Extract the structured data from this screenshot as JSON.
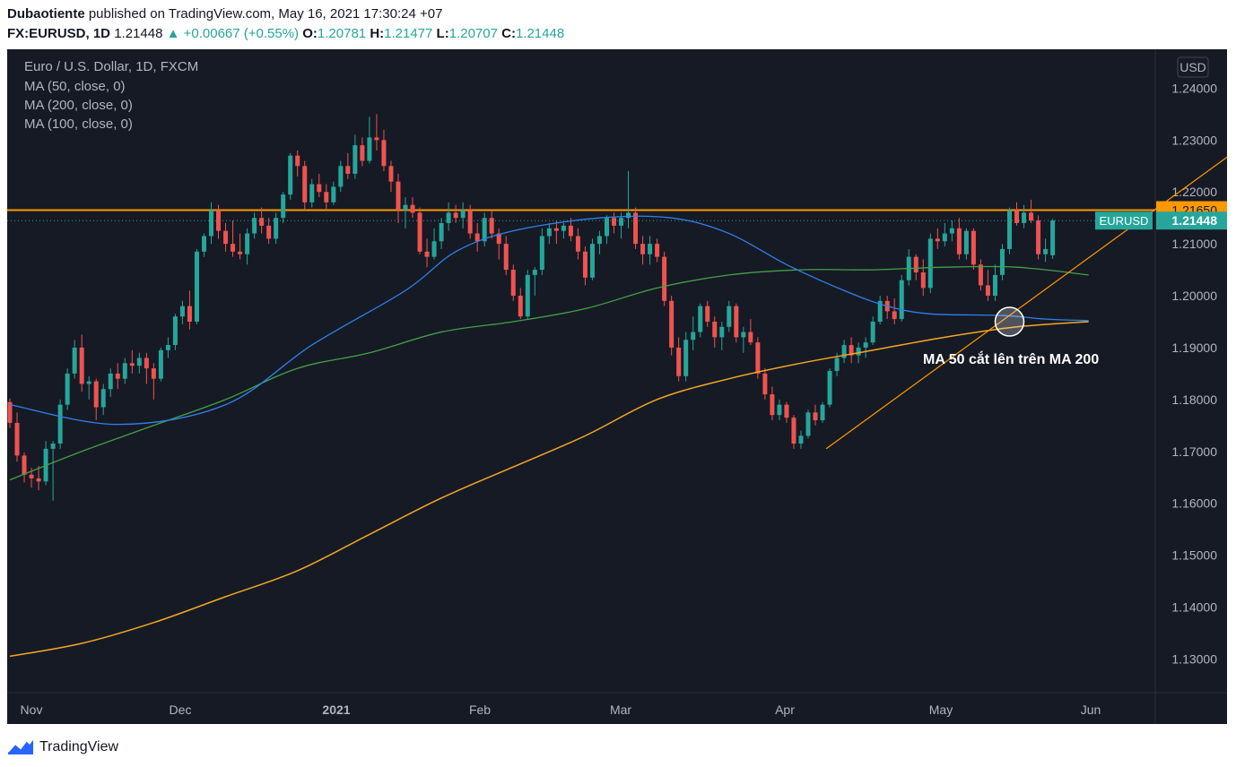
{
  "header": {
    "author": "Dubaotiente",
    "published_text": "published on TradingView.com, May 16, 2021 17:30:24 +07",
    "symbol": "FX:EURUSD, 1D",
    "last": "1.21448",
    "change": "+0.00667 (+0.55%)",
    "o_label": "O:",
    "o_value": "1.20781",
    "h_label": "H:",
    "h_value": "1.21477",
    "l_label": "L:",
    "l_value": "1.20707",
    "c_label": "C:",
    "c_value": "1.21448"
  },
  "legend": {
    "title": "Euro / U.S. Dollar, 1D, FXCM",
    "ma1": "MA (50, close, 0)",
    "ma2": "MA (200, close, 0)",
    "ma3": "MA (100, close, 0)"
  },
  "currency": "USD",
  "annotation": "MA 50 cắt lên trên MA 200",
  "footer": {
    "brand": "TradingView"
  },
  "colors": {
    "background": "#161a25",
    "up": "#26a69a",
    "down": "#ef5350",
    "ma50": "#2f80ed",
    "ma200": "#f5a623",
    "ma100": "#43a047",
    "level": "#ff9800"
  },
  "chart_data": {
    "type": "candlestick",
    "symbol": "EURUSD",
    "timeframe": "1D",
    "ylim": [
      1.1235,
      1.2475
    ],
    "x_tick_labels": [
      "Nov",
      "Dec",
      "2021",
      "Feb",
      "Mar",
      "Apr",
      "May",
      "Jun"
    ],
    "y_tick_labels": [
      "1.24000",
      "1.23000",
      "1.22000",
      "1.21000",
      "1.20000",
      "1.19000",
      "1.18000",
      "1.17000",
      "1.16000",
      "1.15000",
      "1.14000",
      "1.13000"
    ],
    "horizontal_level": {
      "value": 1.2165,
      "label": "1.21650"
    },
    "last_price": {
      "value": 1.21448,
      "label": "1.21448",
      "tag": "EURUSD"
    },
    "candles": [
      [
        1.1795,
        1.1802,
        1.1745,
        1.1755
      ],
      [
        1.1755,
        1.1775,
        1.168,
        1.1692
      ],
      [
        1.1692,
        1.1698,
        1.164,
        1.1655
      ],
      [
        1.1655,
        1.1668,
        1.163,
        1.1648
      ],
      [
        1.1648,
        1.1672,
        1.1625,
        1.1642
      ],
      [
        1.1642,
        1.172,
        1.1635,
        1.1705
      ],
      [
        1.1705,
        1.172,
        1.1605,
        1.1715
      ],
      [
        1.1715,
        1.18,
        1.1705,
        1.179
      ],
      [
        1.179,
        1.186,
        1.178,
        1.185
      ],
      [
        1.185,
        1.1915,
        1.184,
        1.19
      ],
      [
        1.19,
        1.1925,
        1.1815,
        1.183
      ],
      [
        1.183,
        1.1845,
        1.18,
        1.1835
      ],
      [
        1.1835,
        1.184,
        1.176,
        1.1785
      ],
      [
        1.1785,
        1.183,
        1.177,
        1.182
      ],
      [
        1.182,
        1.186,
        1.1805,
        1.185
      ],
      [
        1.185,
        1.187,
        1.182,
        1.184
      ],
      [
        1.184,
        1.188,
        1.183,
        1.187
      ],
      [
        1.187,
        1.1895,
        1.185,
        1.1865
      ],
      [
        1.1865,
        1.189,
        1.185,
        1.188
      ],
      [
        1.188,
        1.189,
        1.183,
        1.186
      ],
      [
        1.186,
        1.187,
        1.18,
        1.184
      ],
      [
        1.184,
        1.19,
        1.1835,
        1.1895
      ],
      [
        1.1895,
        1.192,
        1.188,
        1.1905
      ],
      [
        1.1905,
        1.1965,
        1.1895,
        1.196
      ],
      [
        1.196,
        1.199,
        1.1945,
        1.198
      ],
      [
        1.198,
        1.201,
        1.1935,
        1.195
      ],
      [
        1.195,
        1.209,
        1.1945,
        1.2085
      ],
      [
        1.2085,
        1.212,
        1.2075,
        1.2115
      ],
      [
        1.2115,
        1.218,
        1.21,
        1.2165
      ],
      [
        1.2165,
        1.2175,
        1.211,
        1.2125
      ],
      [
        1.2125,
        1.214,
        1.2085,
        1.21
      ],
      [
        1.21,
        1.2145,
        1.2075,
        1.2085
      ],
      [
        1.2085,
        1.212,
        1.207,
        1.208
      ],
      [
        1.208,
        1.213,
        1.206,
        1.212
      ],
      [
        1.212,
        1.216,
        1.211,
        1.215
      ],
      [
        1.215,
        1.217,
        1.212,
        1.2135
      ],
      [
        1.2135,
        1.215,
        1.21,
        1.211
      ],
      [
        1.211,
        1.216,
        1.21,
        1.215
      ],
      [
        1.215,
        1.22,
        1.214,
        1.2195
      ],
      [
        1.2195,
        1.2275,
        1.2185,
        1.227
      ],
      [
        1.227,
        1.228,
        1.223,
        1.225
      ],
      [
        1.225,
        1.226,
        1.2165,
        1.218
      ],
      [
        1.218,
        1.2225,
        1.217,
        1.2215
      ],
      [
        1.2215,
        1.2235,
        1.219,
        1.22
      ],
      [
        1.22,
        1.2215,
        1.2165,
        1.218
      ],
      [
        1.218,
        1.222,
        1.2175,
        1.221
      ],
      [
        1.221,
        1.226,
        1.22,
        1.225
      ],
      [
        1.225,
        1.2275,
        1.2225,
        1.2235
      ],
      [
        1.2235,
        1.231,
        1.2225,
        1.229
      ],
      [
        1.229,
        1.2305,
        1.225,
        1.226
      ],
      [
        1.226,
        1.2345,
        1.2255,
        1.2305
      ],
      [
        1.2305,
        1.235,
        1.228,
        1.23
      ],
      [
        1.23,
        1.232,
        1.224,
        1.225
      ],
      [
        1.225,
        1.226,
        1.22,
        1.222
      ],
      [
        1.222,
        1.2235,
        1.214,
        1.2165
      ],
      [
        1.2165,
        1.219,
        1.213,
        1.2175
      ],
      [
        1.2175,
        1.219,
        1.215,
        1.216
      ],
      [
        1.216,
        1.217,
        1.208,
        1.2085
      ],
      [
        1.2085,
        1.211,
        1.2055,
        1.2075
      ],
      [
        1.2075,
        1.213,
        1.207,
        1.2105
      ],
      [
        1.2105,
        1.215,
        1.209,
        1.214
      ],
      [
        1.214,
        1.218,
        1.2125,
        1.216
      ],
      [
        1.216,
        1.2175,
        1.214,
        1.215
      ],
      [
        1.215,
        1.218,
        1.213,
        1.2165
      ],
      [
        1.2165,
        1.2175,
        1.211,
        1.212
      ],
      [
        1.212,
        1.214,
        1.2085,
        1.2105
      ],
      [
        1.2105,
        1.216,
        1.2095,
        1.215
      ],
      [
        1.215,
        1.2165,
        1.211,
        1.212
      ],
      [
        1.212,
        1.213,
        1.207,
        1.21
      ],
      [
        1.21,
        1.2115,
        1.204,
        1.205
      ],
      [
        1.205,
        1.206,
        1.199,
        1.2
      ],
      [
        1.2,
        1.2015,
        1.1955,
        1.196
      ],
      [
        1.196,
        1.205,
        1.1955,
        1.204
      ],
      [
        1.204,
        1.2055,
        1.2,
        1.205
      ],
      [
        1.205,
        1.213,
        1.204,
        1.2115
      ],
      [
        1.2115,
        1.214,
        1.21,
        1.213
      ],
      [
        1.213,
        1.2145,
        1.21,
        1.2125
      ],
      [
        1.2125,
        1.214,
        1.211,
        1.2135
      ],
      [
        1.2135,
        1.215,
        1.2105,
        1.2115
      ],
      [
        1.2115,
        1.213,
        1.207,
        1.2085
      ],
      [
        1.2085,
        1.2095,
        1.202,
        1.2035
      ],
      [
        1.2035,
        1.211,
        1.203,
        1.21
      ],
      [
        1.21,
        1.2125,
        1.208,
        1.2115
      ],
      [
        1.2115,
        1.2155,
        1.21,
        1.215
      ],
      [
        1.215,
        1.216,
        1.212,
        1.2135
      ],
      [
        1.2135,
        1.216,
        1.211,
        1.215
      ],
      [
        1.215,
        1.224,
        1.213,
        1.216
      ],
      [
        1.216,
        1.217,
        1.209,
        1.21
      ],
      [
        1.21,
        1.2115,
        1.206,
        1.208
      ],
      [
        1.208,
        1.2115,
        1.206,
        1.21
      ],
      [
        1.21,
        1.211,
        1.2065,
        1.2075
      ],
      [
        1.2075,
        1.2085,
        1.198,
        1.199
      ],
      [
        1.199,
        1.2,
        1.1885,
        1.19
      ],
      [
        1.19,
        1.192,
        1.1835,
        1.1845
      ],
      [
        1.1845,
        1.193,
        1.1835,
        1.1915
      ],
      [
        1.1915,
        1.196,
        1.1895,
        1.193
      ],
      [
        1.193,
        1.1985,
        1.192,
        1.198
      ],
      [
        1.198,
        1.199,
        1.194,
        1.195
      ],
      [
        1.195,
        1.196,
        1.19,
        1.192
      ],
      [
        1.192,
        1.195,
        1.1895,
        1.194
      ],
      [
        1.194,
        1.199,
        1.193,
        1.198
      ],
      [
        1.198,
        1.1985,
        1.191,
        1.192
      ],
      [
        1.192,
        1.194,
        1.189,
        1.193
      ],
      [
        1.193,
        1.1955,
        1.1905,
        1.191
      ],
      [
        1.191,
        1.192,
        1.184,
        1.185
      ],
      [
        1.185,
        1.186,
        1.18,
        1.181
      ],
      [
        1.181,
        1.1825,
        1.176,
        1.177
      ],
      [
        1.177,
        1.18,
        1.176,
        1.179
      ],
      [
        1.179,
        1.1795,
        1.1755,
        1.1765
      ],
      [
        1.1765,
        1.177,
        1.1705,
        1.1715
      ],
      [
        1.1715,
        1.174,
        1.1705,
        1.173
      ],
      [
        1.173,
        1.178,
        1.1725,
        1.1775
      ],
      [
        1.1775,
        1.179,
        1.175,
        1.176
      ],
      [
        1.176,
        1.1795,
        1.1755,
        1.179
      ],
      [
        1.179,
        1.186,
        1.1785,
        1.1855
      ],
      [
        1.1855,
        1.189,
        1.1845,
        1.188
      ],
      [
        1.188,
        1.1915,
        1.187,
        1.1905
      ],
      [
        1.1905,
        1.192,
        1.187,
        1.1885
      ],
      [
        1.1885,
        1.191,
        1.187,
        1.19
      ],
      [
        1.19,
        1.192,
        1.188,
        1.191
      ],
      [
        1.191,
        1.196,
        1.1905,
        1.195
      ],
      [
        1.195,
        1.2,
        1.1945,
        1.199
      ],
      [
        1.199,
        1.2,
        1.1955,
        1.197
      ],
      [
        1.197,
        1.1995,
        1.1945,
        1.1955
      ],
      [
        1.1955,
        1.204,
        1.195,
        1.203
      ],
      [
        1.203,
        1.209,
        1.202,
        1.2075
      ],
      [
        1.2075,
        1.208,
        1.203,
        1.2045
      ],
      [
        1.2045,
        1.207,
        1.2,
        1.2015
      ],
      [
        1.2015,
        1.212,
        1.2005,
        1.211
      ],
      [
        1.211,
        1.213,
        1.209,
        1.2105
      ],
      [
        1.2105,
        1.214,
        1.2095,
        1.212
      ],
      [
        1.212,
        1.2145,
        1.2105,
        1.213
      ],
      [
        1.213,
        1.215,
        1.207,
        1.208
      ],
      [
        1.208,
        1.213,
        1.207,
        1.2125
      ],
      [
        1.2125,
        1.213,
        1.205,
        1.206
      ],
      [
        1.206,
        1.207,
        1.201,
        1.202
      ],
      [
        1.202,
        1.205,
        1.199,
        1.2
      ],
      [
        1.2,
        1.206,
        1.199,
        1.204
      ],
      [
        1.204,
        1.21,
        1.203,
        1.209
      ],
      [
        1.209,
        1.217,
        1.208,
        1.2165
      ],
      [
        1.2165,
        1.218,
        1.2135,
        1.214
      ],
      [
        1.214,
        1.2175,
        1.213,
        1.216
      ],
      [
        1.216,
        1.2185,
        1.214,
        1.2145
      ],
      [
        1.2145,
        1.2155,
        1.207,
        1.208
      ],
      [
        1.208,
        1.211,
        1.2065,
        1.209
      ],
      [
        1.2078,
        1.2148,
        1.2071,
        1.2145
      ]
    ],
    "ma50": [
      [
        0,
        1.179
      ],
      [
        15,
        1.1752
      ],
      [
        30,
        1.179
      ],
      [
        42,
        1.1905
      ],
      [
        55,
        1.201
      ],
      [
        62,
        1.2085
      ],
      [
        70,
        1.2125
      ],
      [
        82,
        1.215
      ],
      [
        92,
        1.215
      ],
      [
        100,
        1.212
      ],
      [
        108,
        1.206
      ],
      [
        116,
        1.201
      ],
      [
        122,
        1.198
      ],
      [
        128,
        1.1965
      ],
      [
        138,
        1.1962
      ],
      [
        144,
        1.1955
      ],
      [
        150,
        1.1952
      ]
    ],
    "ma100": [
      [
        0,
        1.1645
      ],
      [
        10,
        1.17
      ],
      [
        20,
        1.175
      ],
      [
        30,
        1.18
      ],
      [
        40,
        1.186
      ],
      [
        50,
        1.189
      ],
      [
        60,
        1.193
      ],
      [
        70,
        1.195
      ],
      [
        80,
        1.1975
      ],
      [
        90,
        1.2015
      ],
      [
        100,
        1.204
      ],
      [
        110,
        1.205
      ],
      [
        120,
        1.205
      ],
      [
        130,
        1.2055
      ],
      [
        140,
        1.2055
      ],
      [
        150,
        1.204
      ]
    ],
    "ma200": [
      [
        0,
        1.1305
      ],
      [
        10,
        1.133
      ],
      [
        20,
        1.137
      ],
      [
        30,
        1.142
      ],
      [
        40,
        1.147
      ],
      [
        50,
        1.154
      ],
      [
        60,
        1.161
      ],
      [
        70,
        1.167
      ],
      [
        80,
        1.173
      ],
      [
        90,
        1.18
      ],
      [
        100,
        1.184
      ],
      [
        110,
        1.187
      ],
      [
        120,
        1.1895
      ],
      [
        130,
        1.192
      ],
      [
        140,
        1.194
      ],
      [
        150,
        1.195
      ]
    ],
    "trendline": {
      "x1": 113.5,
      "y1": 1.1705,
      "x2": 173,
      "y2": 1.2305
    }
  }
}
